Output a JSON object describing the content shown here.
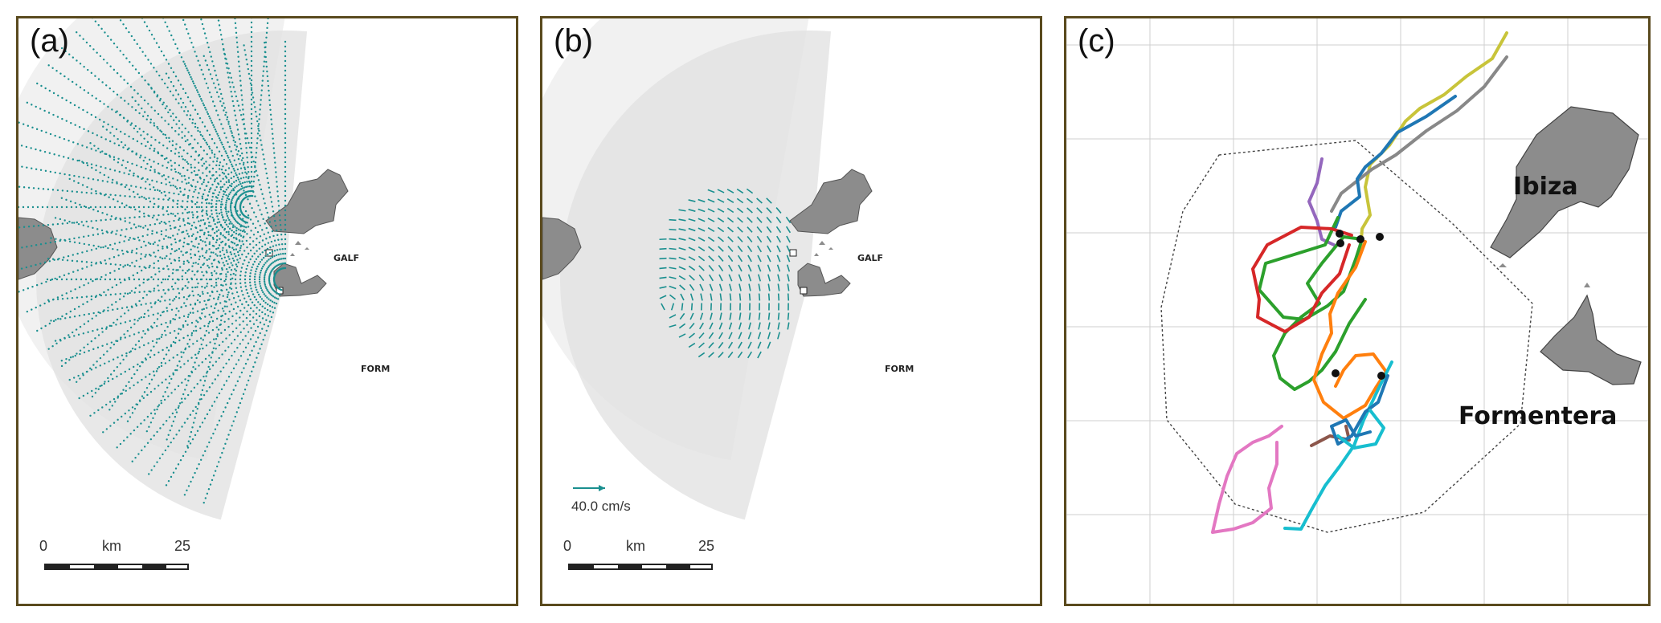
{
  "panels": {
    "a": {
      "label": "(a)",
      "sites": [
        "GALF",
        "FORM"
      ],
      "scale": {
        "start": "0",
        "unit": "km",
        "end": "25"
      }
    },
    "b": {
      "label": "(b)",
      "sites": [
        "GALF",
        "FORM"
      ],
      "vector_legend": "40.0 cm/s",
      "scale": {
        "start": "0",
        "unit": "km",
        "end": "25"
      }
    },
    "c": {
      "label": "(c)",
      "islands": [
        "Ibiza",
        "Formentera"
      ],
      "drifter_colors": [
        "#c8c43a",
        "#888888",
        "#1f77b4",
        "#9467bd",
        "#2ca02c",
        "#d62728",
        "#ff7f0e",
        "#17becf",
        "#e377c2",
        "#8c564b"
      ]
    }
  },
  "colors": {
    "frame": "#5a4a1e",
    "land": "#8c8c8c",
    "vectors": "#1a8f8f",
    "coverage_light": "#f1f1f1",
    "coverage_dark": "#e0e0e0"
  }
}
